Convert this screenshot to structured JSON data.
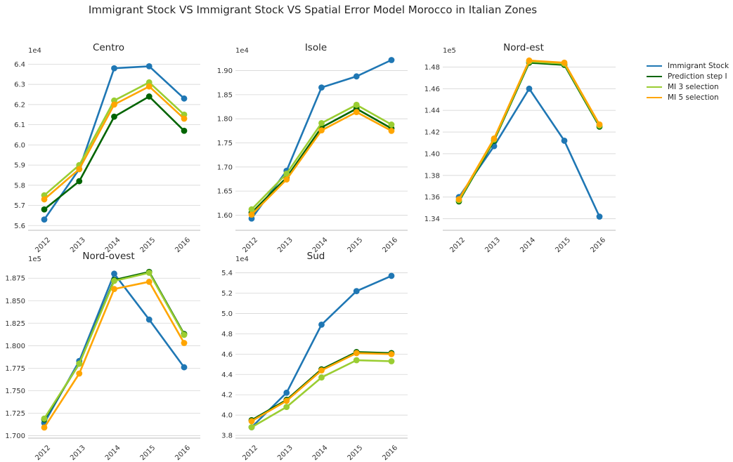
{
  "title": "Immigrant Stock VS Immigrant Stock VS Spatial Error Model Morocco in Italian Zones",
  "series_colors": {
    "Immigrant Stock": "#1f77b4",
    "Prediction step I": "#006400",
    "MI 3 selection": "#9acd32",
    "MI 5 selection": "#ffa500"
  },
  "legend": [
    "Immigrant Stock",
    "Prediction step I",
    "MI 3 selection",
    "MI 5 selection"
  ],
  "chart_data": [
    {
      "type": "line",
      "title": "Centro",
      "x": [
        "2012",
        "2013",
        "2014",
        "2015",
        "2016"
      ],
      "y_offset_label": "1e4",
      "ylim": [
        5.58,
        6.44
      ],
      "yticks": [
        "5.6",
        "5.7",
        "5.8",
        "5.9",
        "6.0",
        "6.1",
        "6.2",
        "6.3",
        "6.4"
      ],
      "series": [
        {
          "name": "Immigrant Stock",
          "values": [
            5.63,
            5.88,
            6.38,
            6.39,
            6.23
          ]
        },
        {
          "name": "Prediction step I",
          "values": [
            5.68,
            5.82,
            6.14,
            6.24,
            6.07
          ]
        },
        {
          "name": "MI 3 selection",
          "values": [
            5.75,
            5.9,
            6.22,
            6.31,
            6.15
          ]
        },
        {
          "name": "MI 5 selection",
          "values": [
            5.73,
            5.88,
            6.2,
            6.29,
            6.13
          ]
        }
      ]
    },
    {
      "type": "line",
      "title": "Isole",
      "x": [
        "2012",
        "2013",
        "2014",
        "2015",
        "2016"
      ],
      "y_offset_label": "1e4",
      "ylim": [
        1.57,
        1.93
      ],
      "yticks": [
        "1.60",
        "1.65",
        "1.70",
        "1.75",
        "1.80",
        "1.85",
        "1.90"
      ],
      "series": [
        {
          "name": "Immigrant Stock",
          "values": [
            1.593,
            1.692,
            1.865,
            1.888,
            1.922
          ]
        },
        {
          "name": "Prediction step I",
          "values": [
            1.605,
            1.678,
            1.782,
            1.821,
            1.78
          ]
        },
        {
          "name": "MI 3 selection",
          "values": [
            1.612,
            1.686,
            1.791,
            1.829,
            1.788
          ]
        },
        {
          "name": "MI 5 selection",
          "values": [
            1.601,
            1.674,
            1.776,
            1.814,
            1.775
          ]
        }
      ]
    },
    {
      "type": "line",
      "title": "Nord-est",
      "x": [
        "2012",
        "2013",
        "2014",
        "2015",
        "2016"
      ],
      "y_offset_label": "1e5",
      "ylim": [
        1.33,
        1.49
      ],
      "yticks": [
        "1.34",
        "1.36",
        "1.38",
        "1.40",
        "1.42",
        "1.44",
        "1.46",
        "1.48"
      ],
      "series": [
        {
          "name": "Immigrant Stock",
          "values": [
            1.36,
            1.407,
            1.46,
            1.412,
            1.342
          ]
        },
        {
          "name": "Prediction step I",
          "values": [
            1.356,
            1.412,
            1.484,
            1.482,
            1.425
          ]
        },
        {
          "name": "MI 3 selection",
          "values": [
            1.357,
            1.413,
            1.485,
            1.483,
            1.426
          ]
        },
        {
          "name": "MI 5 selection",
          "values": [
            1.358,
            1.414,
            1.486,
            1.484,
            1.427
          ]
        }
      ]
    },
    {
      "type": "line",
      "title": "Nord-ovest",
      "x": [
        "2012",
        "2013",
        "2014",
        "2015",
        "2016"
      ],
      "y_offset_label": "1e5",
      "ylim": [
        1.698,
        1.89
      ],
      "yticks": [
        "1.700",
        "1.725",
        "1.750",
        "1.775",
        "1.800",
        "1.825",
        "1.850",
        "1.875"
      ],
      "series": [
        {
          "name": "Immigrant Stock",
          "values": [
            1.714,
            1.783,
            1.88,
            1.829,
            1.776
          ]
        },
        {
          "name": "Prediction step I",
          "values": [
            1.718,
            1.78,
            1.873,
            1.882,
            1.813
          ]
        },
        {
          "name": "MI 3 selection",
          "values": [
            1.719,
            1.78,
            1.872,
            1.881,
            1.812
          ]
        },
        {
          "name": "MI 5 selection",
          "values": [
            1.709,
            1.769,
            1.863,
            1.871,
            1.803
          ]
        }
      ]
    },
    {
      "type": "line",
      "title": "Sud",
      "x": [
        "2012",
        "2013",
        "2014",
        "2015",
        "2016"
      ],
      "y_offset_label": "1e4",
      "ylim": [
        3.78,
        5.48
      ],
      "yticks": [
        "3.8",
        "4.0",
        "4.2",
        "4.4",
        "4.6",
        "4.8",
        "5.0",
        "5.2",
        "5.4"
      ],
      "series": [
        {
          "name": "Immigrant Stock",
          "values": [
            3.88,
            4.22,
            4.89,
            5.22,
            5.37
          ]
        },
        {
          "name": "Prediction step I",
          "values": [
            3.95,
            4.15,
            4.45,
            4.62,
            4.61
          ]
        },
        {
          "name": "MI 3 selection",
          "values": [
            3.88,
            4.08,
            4.37,
            4.54,
            4.53
          ]
        },
        {
          "name": "MI 5 selection",
          "values": [
            3.94,
            4.14,
            4.44,
            4.61,
            4.6
          ]
        }
      ]
    }
  ]
}
